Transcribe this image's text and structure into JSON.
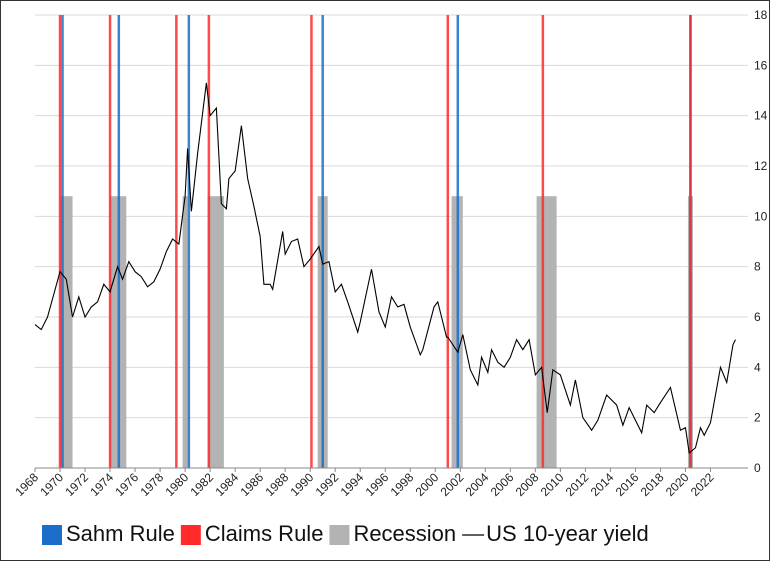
{
  "chart_data": {
    "type": "line",
    "xlim": [
      1968,
      2025
    ],
    "xticks": [
      1968,
      1970,
      1972,
      1974,
      1976,
      1978,
      1980,
      1982,
      1984,
      1986,
      1988,
      1990,
      1992,
      1994,
      1996,
      1998,
      2000,
      2002,
      2004,
      2006,
      2008,
      2010,
      2012,
      2014,
      2016,
      2018,
      2020,
      2022
    ],
    "ylim": [
      0,
      18
    ],
    "yticks": [
      0,
      2,
      4,
      6,
      8,
      10,
      12,
      14,
      16,
      18
    ],
    "grid": true,
    "series": [
      {
        "name": "Sahm Rule",
        "type": "vline",
        "color": "#1a6dc8",
        "x": [
          1970.2,
          1974.7,
          1980.3,
          1991.0,
          2001.8,
          2020.4
        ]
      },
      {
        "name": "Claims Rule",
        "type": "vline",
        "color": "#ff2a2a",
        "x": [
          1970.0,
          1974.0,
          1979.3,
          1981.9,
          1990.1,
          2001.0,
          2008.6,
          2020.4
        ]
      },
      {
        "name": "Recession",
        "type": "bar",
        "color": "#b3b3b3",
        "start": [
          1970.0,
          1974.0,
          1979.8,
          1981.8,
          1990.6,
          2001.3,
          2008.1,
          2020.2
        ],
        "end": [
          1971.0,
          1975.3,
          1980.2,
          1983.1,
          1991.4,
          2002.2,
          2009.7,
          2020.6
        ],
        "values": [
          10.8,
          10.8,
          10.8,
          10.8,
          10.8,
          10.8,
          10.8,
          10.8
        ]
      },
      {
        "name": "US 10-year yield",
        "type": "line",
        "color": "#000000",
        "x": [
          1968.0,
          1968.5,
          1969.0,
          1969.5,
          1970.0,
          1970.5,
          1971.0,
          1971.5,
          1972.0,
          1972.5,
          1973.0,
          1973.5,
          1974.0,
          1974.6,
          1975.0,
          1975.5,
          1976.0,
          1976.5,
          1977.0,
          1977.5,
          1978.0,
          1978.5,
          1979.0,
          1979.5,
          1980.0,
          1980.2,
          1980.5,
          1981.0,
          1981.7,
          1982.0,
          1982.5,
          1982.9,
          1983.3,
          1983.5,
          1984.0,
          1984.5,
          1985.0,
          1985.5,
          1986.0,
          1986.3,
          1986.8,
          1987.0,
          1987.8,
          1988.0,
          1988.5,
          1989.0,
          1989.5,
          1990.0,
          1990.7,
          1991.0,
          1991.5,
          1992.0,
          1992.5,
          1993.0,
          1993.8,
          1994.0,
          1994.9,
          1995.5,
          1996.0,
          1996.5,
          1997.0,
          1997.5,
          1998.0,
          1998.8,
          1999.0,
          1999.9,
          2000.2,
          2000.9,
          2001.0,
          2001.8,
          2002.2,
          2002.8,
          2003.4,
          2003.7,
          2004.2,
          2004.5,
          2005.0,
          2005.5,
          2006.0,
          2006.5,
          2007.0,
          2007.5,
          2008.0,
          2008.5,
          2008.95,
          2009.4,
          2010.0,
          2010.8,
          2011.2,
          2011.8,
          2012.5,
          2013.0,
          2013.7,
          2014.5,
          2015.0,
          2015.5,
          2016.5,
          2016.9,
          2017.5,
          2018.0,
          2018.8,
          2019.6,
          2020.0,
          2020.3,
          2020.8,
          2021.2,
          2021.5,
          2022.0,
          2022.8,
          2023.3,
          2023.8,
          2024.0
        ],
        "values": [
          5.7,
          5.5,
          6.0,
          6.9,
          7.8,
          7.5,
          6.0,
          6.8,
          6.0,
          6.4,
          6.6,
          7.3,
          7.0,
          8.0,
          7.5,
          8.2,
          7.8,
          7.6,
          7.2,
          7.4,
          7.9,
          8.6,
          9.1,
          8.9,
          10.8,
          12.7,
          10.2,
          12.5,
          15.3,
          14.0,
          14.3,
          10.5,
          10.3,
          11.5,
          11.8,
          13.6,
          11.5,
          10.4,
          9.2,
          7.3,
          7.3,
          7.1,
          9.4,
          8.5,
          9.0,
          9.1,
          8.0,
          8.3,
          8.8,
          8.1,
          8.2,
          7.0,
          7.3,
          6.6,
          5.4,
          5.8,
          7.9,
          6.2,
          5.6,
          6.8,
          6.4,
          6.5,
          5.6,
          4.5,
          4.7,
          6.4,
          6.6,
          5.2,
          5.2,
          4.6,
          5.3,
          3.9,
          3.3,
          4.4,
          3.8,
          4.7,
          4.2,
          4.0,
          4.4,
          5.1,
          4.7,
          5.1,
          3.7,
          4.0,
          2.2,
          3.9,
          3.7,
          2.5,
          3.5,
          2.0,
          1.5,
          1.9,
          2.9,
          2.5,
          1.7,
          2.4,
          1.4,
          2.5,
          2.2,
          2.6,
          3.2,
          1.5,
          1.6,
          0.6,
          0.8,
          1.6,
          1.3,
          1.8,
          4.0,
          3.4,
          4.9,
          5.1
        ]
      }
    ]
  }
}
